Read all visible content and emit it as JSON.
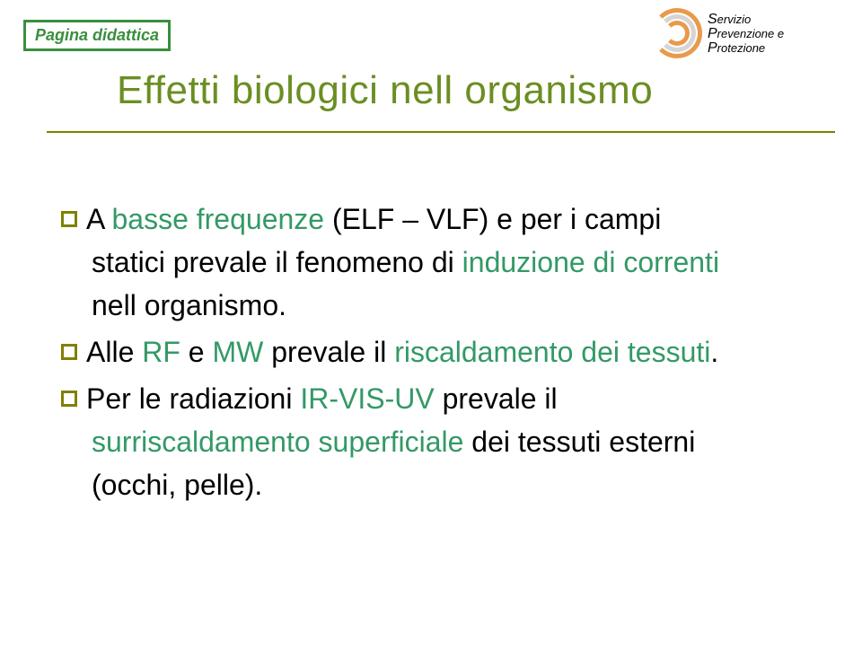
{
  "badge": {
    "text": "Pagina didattica",
    "color": "#3a8e3e",
    "fontsize": 18
  },
  "logo": {
    "line1_big": "S",
    "line1_rest": "ervizio",
    "line2_big": "P",
    "line2_rest": "revenzione e",
    "line3_big": "P",
    "line3_rest": "rotezione"
  },
  "title": {
    "text": "Effetti biologici nell organismo",
    "color": "#6b8e23",
    "fontsize": 44
  },
  "body": {
    "fontsize": 32,
    "lineheight": 1.5,
    "base_color": "#000000",
    "highlight_color": "#339966",
    "bullet_color": "#808000",
    "items": [
      {
        "l1a": "A ",
        "l1b": "basse frequenze",
        "l1c": " (ELF – VLF) e per i campi",
        "l2a": "statici prevale il fenomeno di ",
        "l2b": "induzione di correnti",
        "l3a": "nell organismo."
      },
      {
        "l1a": "Alle ",
        "l1b": "RF",
        "l1c": " e ",
        "l1d": "MW",
        "l1e": " prevale il ",
        "l1f": "riscaldamento dei tessuti",
        "l1g": "."
      },
      {
        "l1a": "Per le radiazioni ",
        "l1b": "IR-VIS-UV",
        "l1c": " prevale il",
        "l2a": "surriscaldamento superficiale",
        "l2b": " dei tessuti esterni",
        "l3a": "(occhi, pelle)."
      }
    ]
  }
}
